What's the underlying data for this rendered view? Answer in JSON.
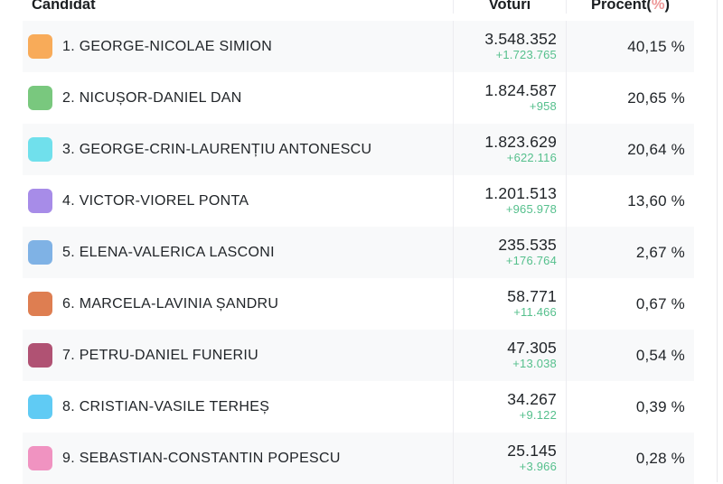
{
  "colors": {
    "delta_green": "#56c08d",
    "percent_symbol": "#ee9999",
    "row_stripe": "#f8f9fa",
    "text_dark": "#212529"
  },
  "table": {
    "headers": {
      "candidat": "Candidat",
      "voturi": "Voturi",
      "procent_prefix": "Procent(",
      "procent_symbol": "%",
      "procent_suffix": ")"
    },
    "rows": [
      {
        "label": "1. GEORGE-NICOLAE SIMION",
        "color": "#f8ab59",
        "votes": "3.548.352",
        "delta": "+1.723.765",
        "percent": "40,15 %"
      },
      {
        "label": "2. NICUȘOR-DANIEL DAN",
        "color": "#79c87e",
        "votes": "1.824.587",
        "delta": "+958",
        "percent": "20,65 %"
      },
      {
        "label": "3. GEORGE-CRIN-LAURENȚIU ANTONESCU",
        "color": "#70e0ec",
        "votes": "1.823.629",
        "delta": "+622.116",
        "percent": "20,64 %"
      },
      {
        "label": "4. VICTOR-VIOREL PONTA",
        "color": "#a78ce8",
        "votes": "1.201.513",
        "delta": "+965.978",
        "percent": "13,60 %"
      },
      {
        "label": "5. ELENA-VALERICA LASCONI",
        "color": "#7fb2e5",
        "votes": "235.535",
        "delta": "+176.764",
        "percent": "2,67 %"
      },
      {
        "label": "6. MARCELA-LAVINIA ȘANDRU",
        "color": "#de7e51",
        "votes": "58.771",
        "delta": "+11.466",
        "percent": "0,67 %"
      },
      {
        "label": "7. PETRU-DANIEL FUNERIU",
        "color": "#b05273",
        "votes": "47.305",
        "delta": "+13.038",
        "percent": "0,54 %"
      },
      {
        "label": "8. CRISTIAN-VASILE TERHEȘ",
        "color": "#60cbf4",
        "votes": "34.267",
        "delta": "+9.122",
        "percent": "0,39 %"
      },
      {
        "label": "9. SEBASTIAN-CONSTANTIN POPESCU",
        "color": "#f093c1",
        "votes": "25.145",
        "delta": "+3.966",
        "percent": "0,28 %"
      }
    ]
  }
}
